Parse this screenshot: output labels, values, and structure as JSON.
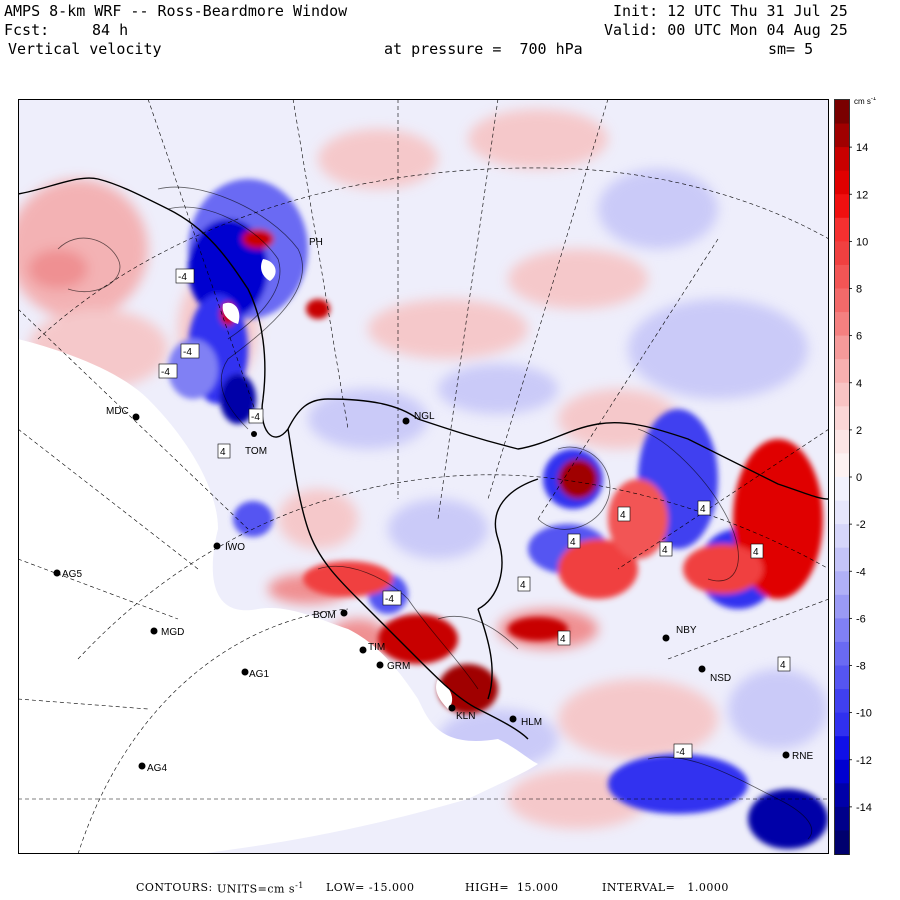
{
  "header": {
    "title": "AMPS 8-km WRF -- Ross-Beardmore Window",
    "fcst_label": "Fcst:",
    "fcst_value": "84 h",
    "field": "Vertical velocity",
    "init": "Init: 12 UTC Thu 31 Jul 25",
    "valid": "Valid: 00 UTC Mon 04 Aug 25",
    "level": "at pressure =  700 hPa",
    "smoothing": "sm= 5"
  },
  "footer": {
    "contours_label": "CONTOURS:",
    "units_label": "UNITS=cm s",
    "units_exp": "-1",
    "low": "LOW= -15.000",
    "high": "HIGH=  15.000",
    "interval": "INTERVAL=   1.0000"
  },
  "colorbar": {
    "unit_text": "cm s",
    "unit_exp": "-1",
    "min": -16,
    "max": 16,
    "labels": [
      "14",
      "12",
      "10",
      "8",
      "6",
      "4",
      "2",
      "0",
      "-2",
      "-4",
      "-6",
      "-8",
      "-10",
      "-12",
      "-14"
    ],
    "colors_top_to_bottom": [
      "#7a0000",
      "#a00000",
      "#c80000",
      "#e00000",
      "#f01010",
      "#f53030",
      "#f04040",
      "#f25555",
      "#f36a6a",
      "#f48080",
      "#f59a9a",
      "#f7b0b0",
      "#f8c4c4",
      "#fad6d6",
      "#fce6e6",
      "#fdf2f2",
      "#f2f2fd",
      "#e6e6fc",
      "#d6d6fa",
      "#c4c4f8",
      "#b0b0f7",
      "#9a9af5",
      "#8080f4",
      "#6a6af3",
      "#5555f2",
      "#4040f0",
      "#3030f0",
      "#1010e8",
      "#0000d0",
      "#0000a8",
      "#00008a",
      "#00006e"
    ]
  },
  "stations": [
    {
      "id": "MDC",
      "label": "MDC"
    },
    {
      "id": "NGL",
      "label": "NGL"
    },
    {
      "id": "IWO",
      "label": "IWO"
    },
    {
      "id": "AG5",
      "label": "AG5"
    },
    {
      "id": "MGD",
      "label": "MGD"
    },
    {
      "id": "AG1",
      "label": "AG1"
    },
    {
      "id": "AG4",
      "label": "AG4"
    },
    {
      "id": "BOM",
      "label": "BOM"
    },
    {
      "id": "TIM",
      "label": "TIM"
    },
    {
      "id": "GRM",
      "label": "GRM"
    },
    {
      "id": "KLN",
      "label": "KLN"
    },
    {
      "id": "HLM",
      "label": "HLM"
    },
    {
      "id": "NBY",
      "label": "NBY"
    },
    {
      "id": "NSD",
      "label": "NSD"
    },
    {
      "id": "RNE",
      "label": "RNE"
    },
    {
      "id": "PH",
      "label": "PH"
    },
    {
      "id": "TOM",
      "label": "TOM"
    }
  ],
  "contour_labels": [
    "-4",
    "-4",
    "-4",
    "-4",
    "-4",
    "4",
    "4",
    "4",
    "4",
    "4",
    "4",
    "4",
    "-4",
    "4",
    "4"
  ]
}
